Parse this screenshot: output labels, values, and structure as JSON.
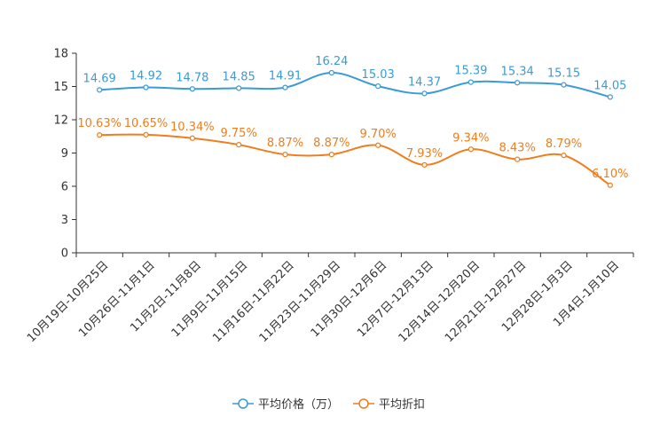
{
  "chart_data": {
    "type": "line",
    "categories": [
      "10月19日-10月25日",
      "10月26日-11月1日",
      "11月2日-11月8日",
      "11月9日-11月15日",
      "11月16日-11月22日",
      "11月23日-11月29日",
      "11月30日-12月6日",
      "12月7日-12月13日",
      "12月14日-12月20日",
      "12月21日-12月27日",
      "12月28日-1月3日",
      "1月4日-1月10日"
    ],
    "ylim": [
      0,
      18
    ],
    "yticks": [
      0,
      3,
      6,
      9,
      12,
      15,
      18
    ],
    "series": [
      {
        "name": "平均价格（万）",
        "color": "#3a9bd5",
        "values": [
          14.69,
          14.92,
          14.78,
          14.85,
          14.91,
          16.24,
          15.03,
          14.37,
          15.39,
          15.34,
          15.15,
          14.05
        ],
        "labels": [
          "14.69",
          "14.92",
          "14.78",
          "14.85",
          "14.91",
          "16.24",
          "15.03",
          "14.37",
          "15.39",
          "15.34",
          "15.15",
          "14.05"
        ]
      },
      {
        "name": "平均折扣",
        "color": "#f07d1e",
        "values": [
          10.63,
          10.65,
          10.34,
          9.75,
          8.87,
          8.87,
          9.7,
          7.93,
          9.34,
          8.43,
          8.79,
          6.1
        ],
        "labels": [
          "10.63%",
          "10.65%",
          "10.34%",
          "9.75%",
          "8.87%",
          "8.87%",
          "9.70%",
          "7.93%",
          "9.34%",
          "8.43%",
          "8.79%",
          "6.10%"
        ]
      }
    ]
  }
}
